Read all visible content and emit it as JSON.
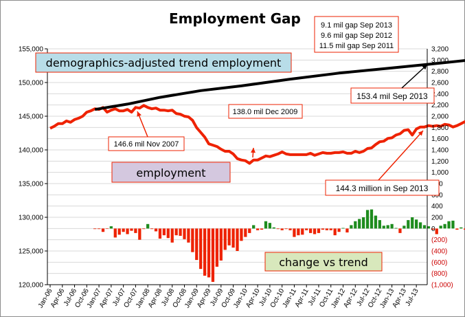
{
  "chart_data": {
    "type": "line+bar",
    "title": "Employment Gap",
    "x_tick_labels": [
      "Jan-06",
      "Apr-06",
      "Jul-06",
      "Oct-06",
      "Jan-07",
      "Apr-07",
      "Jul-07",
      "Oct-07",
      "Jan-08",
      "Apr-08",
      "Jul-08",
      "Oct-08",
      "Jan-09",
      "Apr-09",
      "Jul-09",
      "Oct-09",
      "Jan-10",
      "Apr-10",
      "Jul-10",
      "Oct-10",
      "Jan-11",
      "Apr-11",
      "Jul-11",
      "Oct-11",
      "Jan-12",
      "Apr-12",
      "Jul-12",
      "Oct-12",
      "Jan-13",
      "Apr-13",
      "Jul-13"
    ],
    "left_axis": {
      "ylim": [
        120000,
        155000
      ],
      "ticks": [
        "120,000",
        "125,000",
        "130,000",
        "135,000",
        "140,000",
        "145,000",
        "150,000",
        "155,000"
      ]
    },
    "right_axis": {
      "ylim": [
        -1000,
        3200
      ],
      "ticks": [
        "(1,000)",
        "(800)",
        "(600)",
        "(400)",
        "(200)",
        "0",
        "200",
        "400",
        "600",
        "800",
        "1,000",
        "1,200",
        "1,400",
        "1,600",
        "1,800",
        "2,000",
        "2,200",
        "2,400",
        "2,600",
        "2,800",
        "3,000",
        "3,200"
      ]
    },
    "grid": true,
    "series": [
      {
        "name": "employment",
        "axis": "left",
        "color": "#ee2200",
        "start": "2006-01",
        "values": [
          143200,
          143500,
          143900,
          143900,
          144300,
          144100,
          144500,
          144700,
          145000,
          145600,
          145800,
          146100,
          146000,
          146300,
          145600,
          145900,
          146100,
          145800,
          145800,
          146000,
          145600,
          146300,
          146200,
          146600,
          146300,
          146100,
          146200,
          145900,
          145900,
          145800,
          145900,
          145400,
          145300,
          145000,
          144900,
          144400,
          143300,
          142600,
          141900,
          140900,
          140700,
          140500,
          140100,
          139800,
          139800,
          139400,
          138700,
          138500,
          138400,
          138000,
          138500,
          138500,
          138800,
          139100,
          139000,
          139200,
          139400,
          139700,
          139400,
          139300,
          139300,
          139300,
          139300,
          139300,
          139500,
          139200,
          139400,
          139600,
          139500,
          139500,
          139600,
          139600,
          139700,
          139500,
          139500,
          139800,
          139600,
          139800,
          140200,
          140300,
          140800,
          141200,
          141300,
          141700,
          141800,
          142200,
          142400,
          142900,
          143000,
          142200,
          143100,
          143400,
          143400,
          143600,
          143500,
          143600,
          143500,
          143800,
          143700,
          143400,
          143600,
          143900,
          144200,
          144300,
          144300,
          144300
        ]
      },
      {
        "name": "demographics-adjusted trend employment",
        "axis": "left",
        "color": "#000000",
        "start": "2006-12",
        "points": [
          [
            0,
            146000
          ],
          [
            8,
            146800
          ],
          [
            16,
            147800
          ],
          [
            26,
            148800
          ],
          [
            36,
            149500
          ],
          [
            48,
            150500
          ],
          [
            60,
            151400
          ],
          [
            72,
            152100
          ],
          [
            82,
            152700
          ],
          [
            93,
            153400
          ]
        ]
      },
      {
        "name": "change vs trend",
        "axis": "right",
        "type": "bar",
        "start": "2006-12",
        "positive_color": "#1e8c1e",
        "negative_color": "#ee2200",
        "values": [
          -10,
          -10,
          -60,
          -5,
          40,
          -160,
          -110,
          -60,
          -100,
          -40,
          -80,
          -200,
          -10,
          80,
          -10,
          -50,
          -180,
          -120,
          -170,
          -250,
          -120,
          -130,
          -190,
          -250,
          -420,
          -560,
          -720,
          -840,
          -870,
          -950,
          -680,
          -570,
          -380,
          -300,
          -340,
          -400,
          -220,
          -150,
          -80,
          60,
          -30,
          -20,
          130,
          100,
          20,
          -10,
          -30,
          -10,
          -30,
          -150,
          -120,
          -110,
          -30,
          -80,
          -100,
          -80,
          -20,
          -30,
          -30,
          -120,
          -60,
          10,
          -70,
          60,
          130,
          170,
          200,
          330,
          340,
          230,
          150,
          50,
          60,
          80,
          10,
          -80,
          50,
          150,
          200,
          160,
          110,
          60,
          40,
          -20,
          -100,
          50,
          80,
          130,
          140,
          -20,
          20,
          -20
        ]
      }
    ],
    "labels": {
      "gap_2013": "9.1 mil gap Sep 2013",
      "gap_2012": "9.6 mil gap Sep 2012",
      "gap_2011": "11.5 mil gap Sep 2011",
      "trend_label": "demographics-adjusted trend employment",
      "trend_value": "153.4 mil Sep 2013",
      "peak_2009": "138.0 mil Dec 2009",
      "peak_2007": "146.6 mil Nov 2007",
      "employment_label": "employment",
      "current_value": "144.3 million in Sep 2013",
      "change_label": "change vs trend"
    }
  }
}
